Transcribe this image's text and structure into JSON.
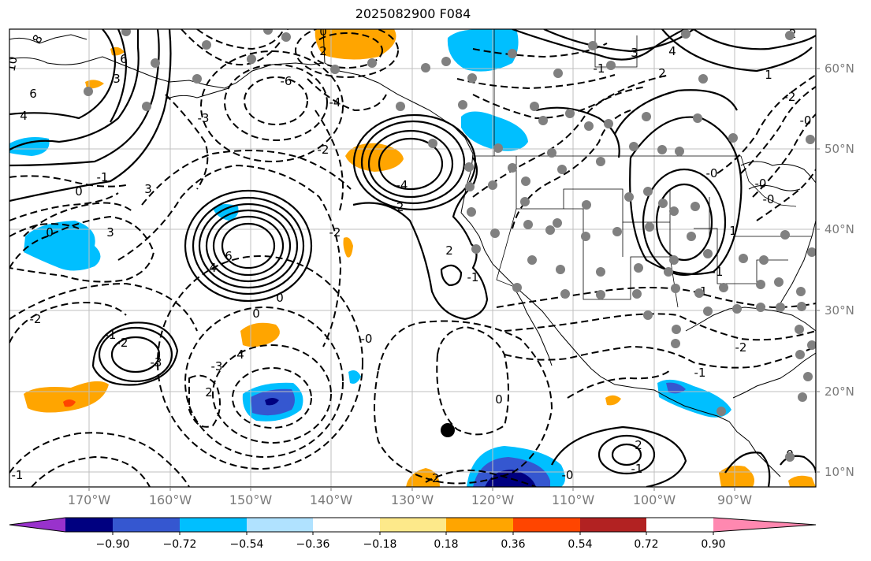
{
  "title": "2025082900 F084",
  "lat_labels": [
    "60°N",
    "50°N",
    "40°N",
    "30°N",
    "20°N",
    "10°N"
  ],
  "lon_labels": [
    "170°W",
    "160°W",
    "150°W",
    "140°W",
    "130°W",
    "120°W",
    "110°W",
    "100°W",
    "90°W"
  ],
  "colorbar": {
    "labels": [
      "−0.90",
      "−0.72",
      "−0.54",
      "−0.36",
      "−0.18",
      "0.18",
      "0.36",
      "0.54",
      "0.72",
      "0.90"
    ],
    "colors": [
      "#9932cc",
      "#000080",
      "#3557d0",
      "#00bfff",
      "#b0e2ff",
      "#ffffff",
      "#fde98a",
      "#ffa500",
      "#ff4500",
      "#b22222",
      "#ff88b0"
    ]
  },
  "contour_labels": [
    "10",
    "8",
    "6",
    "4",
    "3",
    "6",
    "0",
    "-1",
    "0",
    "3",
    "-2",
    "-3",
    "-6",
    "-4",
    "0",
    "0",
    "4",
    "6",
    "-2",
    "-4",
    "-2",
    "2",
    "3",
    "-2",
    "-1",
    "-3",
    "4",
    "2",
    "-0",
    "-1",
    "-2",
    "-3",
    "-1",
    "-2",
    "0",
    "-0",
    "-1",
    "0",
    "2",
    "1",
    "-1",
    "-0",
    "-1",
    "-2",
    "-1",
    "-0",
    "-0",
    "-2",
    "-0",
    "-1",
    "2",
    "1",
    "-2",
    "4",
    "3",
    "2",
    "0"
  ],
  "storm_marker": "tropical-cyclone-position",
  "colors": {
    "contour": "#000000",
    "station": "#808080",
    "coast": "#000000",
    "grid": "#bfbfbf"
  }
}
